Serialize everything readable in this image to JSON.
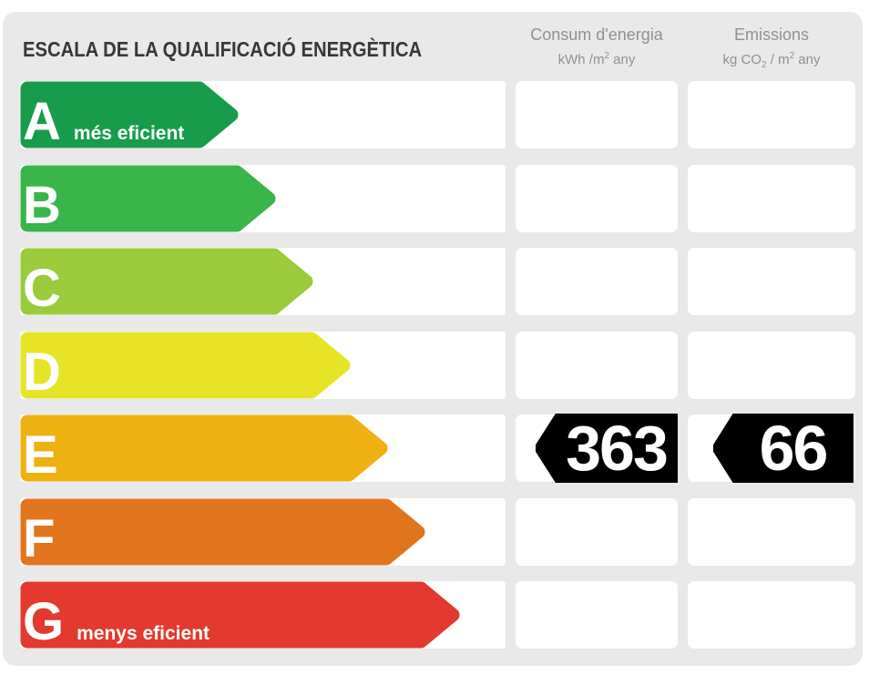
{
  "header": {
    "title": "ESCALA DE LA QUALIFICACIÓ ENERGÈTICA",
    "columns": [
      {
        "title": "Consum d'energia",
        "unit": {
          "prefix": "kWh /m",
          "sup": "2",
          "suffix": " any"
        }
      },
      {
        "title": "Emissions",
        "unit": {
          "prefix": "kg CO",
          "sub": "2",
          "mid": " / m",
          "sup": "2",
          "suffix": " any"
        }
      }
    ]
  },
  "chart_data": {
    "type": "bar",
    "title": "ESCALA DE LA QUALIFICACIÓ ENERGÈTICA",
    "categories": [
      "A",
      "B",
      "C",
      "D",
      "E",
      "F",
      "G"
    ],
    "category_labels": {
      "A": "més eficient",
      "G": "menys eficient"
    },
    "bar_colors": [
      "#189c4c",
      "#3ab54a",
      "#9acb3b",
      "#e7e428",
      "#efb111",
      "#e1751e",
      "#e3392e"
    ],
    "columns": [
      "Consum d'energia kWh/m2 any",
      "Emissions kg CO2/m2 any"
    ],
    "rating": "E",
    "values": {
      "consumption_kwh_m2_any": 363,
      "emissions_kg_co2_m2_any": 66
    }
  },
  "scale": {
    "rows": [
      {
        "letter": "A",
        "label": "més eficient",
        "color": "#189c4c"
      },
      {
        "letter": "B",
        "label": "",
        "color": "#3ab54a"
      },
      {
        "letter": "C",
        "label": "",
        "color": "#9acb3b"
      },
      {
        "letter": "D",
        "label": "",
        "color": "#e7e428"
      },
      {
        "letter": "E",
        "label": "",
        "color": "#efb111"
      },
      {
        "letter": "F",
        "label": "",
        "color": "#e1751e"
      },
      {
        "letter": "G",
        "label": "menys eficient",
        "color": "#e3392e"
      }
    ]
  },
  "result": {
    "rating_letter": "E",
    "consumption_value": "363",
    "emissions_value": "66",
    "badge_color": "#000000"
  },
  "colors": {
    "panel_background": "#e8e9e8",
    "cell_background": "#ffffff",
    "title_color": "#383837",
    "header_text_color": "#8f9191"
  }
}
